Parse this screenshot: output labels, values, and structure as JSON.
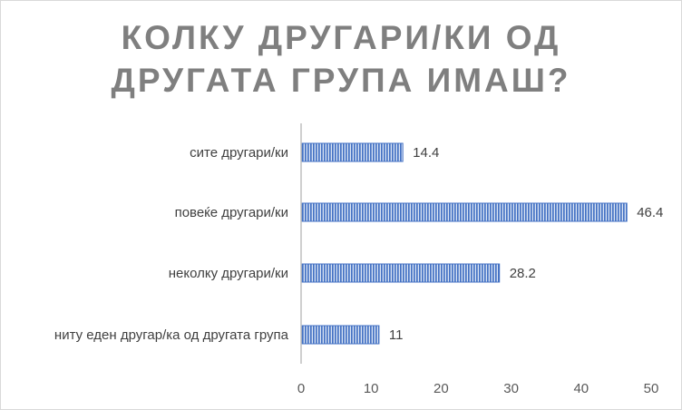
{
  "chart_data": {
    "type": "bar",
    "orientation": "horizontal",
    "title_lines": [
      "КОЛКУ ДРУГАРИ/КИ ОД",
      "ДРУГАТА ГРУПА ИМАШ?"
    ],
    "categories": [
      "сите другари/ки",
      "повеќе другари/ки",
      "неколку другари/ки",
      "ниту еден другар/ка од другата група"
    ],
    "values": [
      14.4,
      46.4,
      28.2,
      11
    ],
    "value_labels": [
      "14.4",
      "46.4",
      "28.2",
      "11"
    ],
    "xlim": [
      0,
      50
    ],
    "xticks": [
      0,
      10,
      20,
      30,
      40,
      50
    ],
    "xtick_labels": [
      "0",
      "10",
      "20",
      "30",
      "40",
      "50"
    ],
    "grid": false,
    "bar_color": "#4472c4",
    "bar_pattern": "vertical-stripes"
  }
}
